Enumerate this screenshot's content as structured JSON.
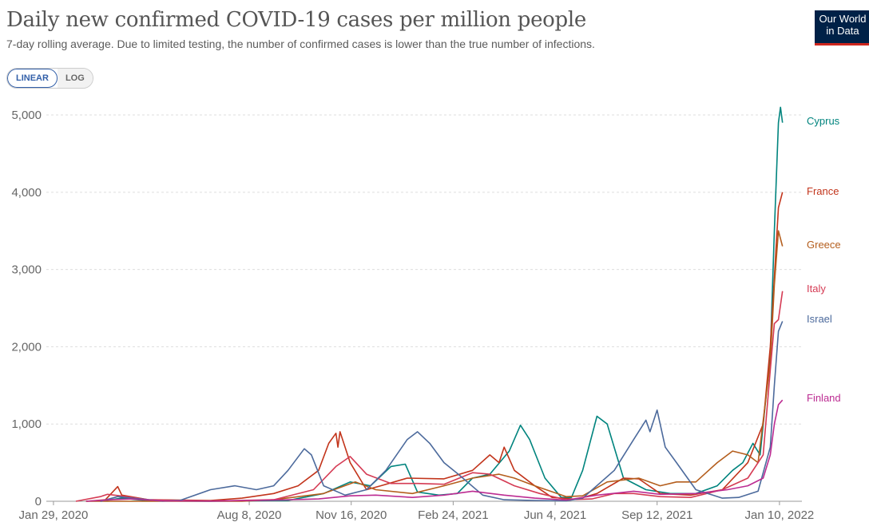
{
  "header": {
    "title": "Daily new confirmed COVID-19 cases per million people",
    "subtitle": "7-day rolling average. Due to limited testing, the number of confirmed cases is lower than the true number of infections."
  },
  "logo": {
    "line1": "Our World",
    "line2": "in Data"
  },
  "scale_toggle": {
    "linear_label": "LINEAR",
    "log_label": "LOG",
    "selected": "LINEAR"
  },
  "colors": {
    "accent": "#3360a9",
    "logo_bg": "#002147",
    "logo_stripe": "#ce261e"
  },
  "chart_data": {
    "type": "line",
    "title": "Daily new confirmed COVID-19 cases per million people",
    "subtitle": "7-day rolling average. Due to limited testing, the number of confirmed cases is lower than the true number of infections.",
    "xlabel": "",
    "ylabel": "",
    "x_axis": {
      "type": "date",
      "range": [
        "2020-01-22",
        "2022-02-01"
      ],
      "tick_labels": [
        "Jan 29, 2020",
        "Aug 8, 2020",
        "Nov 16, 2020",
        "Feb 24, 2021",
        "Jun 4, 2021",
        "Sep 12, 2021",
        "Jan 10, 2022"
      ],
      "tick_dates": [
        "2020-01-29",
        "2020-08-08",
        "2020-11-16",
        "2021-02-24",
        "2021-06-04",
        "2021-09-12",
        "2022-01-10"
      ]
    },
    "y_axis": {
      "range": [
        0,
        5300
      ],
      "ticks": [
        0,
        1000,
        2000,
        3000,
        4000,
        5000
      ],
      "tick_labels": [
        "0",
        "1,000",
        "2,000",
        "3,000",
        "4,000",
        "5,000"
      ]
    },
    "grid": true,
    "legend": "end-of-line labels",
    "series": [
      {
        "name": "Cyprus",
        "color": "#00847e",
        "points": [
          [
            "2020-03-15",
            0
          ],
          [
            "2020-04-05",
            40
          ],
          [
            "2020-05-01",
            5
          ],
          [
            "2020-07-01",
            0
          ],
          [
            "2020-09-15",
            10
          ],
          [
            "2020-10-20",
            100
          ],
          [
            "2020-11-15",
            250
          ],
          [
            "2020-12-05",
            200
          ],
          [
            "2020-12-25",
            450
          ],
          [
            "2021-01-08",
            480
          ],
          [
            "2021-01-20",
            120
          ],
          [
            "2021-02-10",
            80
          ],
          [
            "2021-02-28",
            100
          ],
          [
            "2021-03-15",
            300
          ],
          [
            "2021-04-01",
            350
          ],
          [
            "2021-04-20",
            650
          ],
          [
            "2021-05-01",
            985
          ],
          [
            "2021-05-10",
            800
          ],
          [
            "2021-05-25",
            300
          ],
          [
            "2021-06-10",
            50
          ],
          [
            "2021-06-20",
            50
          ],
          [
            "2021-07-01",
            400
          ],
          [
            "2021-07-15",
            1100
          ],
          [
            "2021-07-25",
            1000
          ],
          [
            "2021-08-10",
            300
          ],
          [
            "2021-09-01",
            150
          ],
          [
            "2021-09-25",
            100
          ],
          [
            "2021-10-20",
            100
          ],
          [
            "2021-11-10",
            200
          ],
          [
            "2021-11-25",
            400
          ],
          [
            "2021-12-05",
            500
          ],
          [
            "2021-12-15",
            750
          ],
          [
            "2021-12-22",
            600
          ],
          [
            "2022-01-01",
            1900
          ],
          [
            "2022-01-05",
            3500
          ],
          [
            "2022-01-09",
            4900
          ],
          [
            "2022-01-11",
            5100
          ],
          [
            "2022-01-13",
            4900
          ]
        ]
      },
      {
        "name": "France",
        "color": "#c2341b",
        "points": [
          [
            "2020-03-01",
            0
          ],
          [
            "2020-03-20",
            20
          ],
          [
            "2020-04-01",
            190
          ],
          [
            "2020-04-05",
            80
          ],
          [
            "2020-05-01",
            20
          ],
          [
            "2020-07-01",
            10
          ],
          [
            "2020-08-01",
            40
          ],
          [
            "2020-09-01",
            100
          ],
          [
            "2020-09-25",
            200
          ],
          [
            "2020-10-15",
            400
          ],
          [
            "2020-10-25",
            750
          ],
          [
            "2020-11-01",
            880
          ],
          [
            "2020-11-03",
            700
          ],
          [
            "2020-11-05",
            900
          ],
          [
            "2020-11-15",
            500
          ],
          [
            "2020-12-01",
            150
          ],
          [
            "2020-12-15",
            200
          ],
          [
            "2021-01-10",
            300
          ],
          [
            "2021-02-15",
            290
          ],
          [
            "2021-03-15",
            400
          ],
          [
            "2021-04-01",
            600
          ],
          [
            "2021-04-10",
            500
          ],
          [
            "2021-04-15",
            700
          ],
          [
            "2021-04-25",
            400
          ],
          [
            "2021-05-15",
            200
          ],
          [
            "2021-06-01",
            50
          ],
          [
            "2021-06-25",
            25
          ],
          [
            "2021-07-15",
            100
          ],
          [
            "2021-08-10",
            300
          ],
          [
            "2021-08-25",
            290
          ],
          [
            "2021-09-15",
            100
          ],
          [
            "2021-10-15",
            80
          ],
          [
            "2021-11-15",
            150
          ],
          [
            "2021-12-10",
            500
          ],
          [
            "2021-12-25",
            1000
          ],
          [
            "2022-01-01",
            2000
          ],
          [
            "2022-01-05",
            2900
          ],
          [
            "2022-01-09",
            3800
          ],
          [
            "2022-01-13",
            4000
          ]
        ]
      },
      {
        "name": "Greece",
        "color": "#b45e1d",
        "points": [
          [
            "2020-03-01",
            0
          ],
          [
            "2020-08-01",
            0
          ],
          [
            "2020-09-01",
            20
          ],
          [
            "2020-10-20",
            100
          ],
          [
            "2020-11-20",
            250
          ],
          [
            "2020-12-10",
            150
          ],
          [
            "2021-01-15",
            100
          ],
          [
            "2021-02-15",
            200
          ],
          [
            "2021-03-15",
            300
          ],
          [
            "2021-04-10",
            350
          ],
          [
            "2021-04-25",
            300
          ],
          [
            "2021-05-15",
            200
          ],
          [
            "2021-06-15",
            60
          ],
          [
            "2021-07-01",
            70
          ],
          [
            "2021-07-25",
            250
          ],
          [
            "2021-08-25",
            300
          ],
          [
            "2021-09-15",
            200
          ],
          [
            "2021-10-01",
            250
          ],
          [
            "2021-10-20",
            250
          ],
          [
            "2021-11-10",
            500
          ],
          [
            "2021-11-25",
            650
          ],
          [
            "2021-12-10",
            600
          ],
          [
            "2021-12-20",
            500
          ],
          [
            "2022-01-01",
            1800
          ],
          [
            "2022-01-05",
            2800
          ],
          [
            "2022-01-09",
            3500
          ],
          [
            "2022-01-13",
            3300
          ]
        ]
      },
      {
        "name": "Italy",
        "color": "#d53b54",
        "points": [
          [
            "2020-02-20",
            0
          ],
          [
            "2020-03-15",
            60
          ],
          [
            "2020-03-22",
            90
          ],
          [
            "2020-04-10",
            60
          ],
          [
            "2020-05-01",
            20
          ],
          [
            "2020-07-01",
            3
          ],
          [
            "2020-09-01",
            20
          ],
          [
            "2020-10-10",
            150
          ],
          [
            "2020-11-01",
            450
          ],
          [
            "2020-11-15",
            580
          ],
          [
            "2020-12-01",
            350
          ],
          [
            "2020-12-25",
            230
          ],
          [
            "2021-01-20",
            230
          ],
          [
            "2021-02-15",
            220
          ],
          [
            "2021-03-15",
            370
          ],
          [
            "2021-04-01",
            350
          ],
          [
            "2021-04-25",
            200
          ],
          [
            "2021-05-20",
            100
          ],
          [
            "2021-06-15",
            20
          ],
          [
            "2021-07-10",
            30
          ],
          [
            "2021-08-01",
            100
          ],
          [
            "2021-08-20",
            100
          ],
          [
            "2021-09-15",
            60
          ],
          [
            "2021-10-15",
            50
          ],
          [
            "2021-11-15",
            150
          ],
          [
            "2021-12-10",
            300
          ],
          [
            "2021-12-25",
            600
          ],
          [
            "2022-01-01",
            1700
          ],
          [
            "2022-01-05",
            2300
          ],
          [
            "2022-01-09",
            2350
          ],
          [
            "2022-01-13",
            2720
          ]
        ]
      },
      {
        "name": "Israel",
        "color": "#4c6a9c",
        "points": [
          [
            "2020-03-15",
            0
          ],
          [
            "2020-04-01",
            60
          ],
          [
            "2020-04-15",
            40
          ],
          [
            "2020-05-15",
            2
          ],
          [
            "2020-06-01",
            10
          ],
          [
            "2020-07-01",
            150
          ],
          [
            "2020-07-25",
            200
          ],
          [
            "2020-08-15",
            150
          ],
          [
            "2020-09-01",
            200
          ],
          [
            "2020-09-15",
            400
          ],
          [
            "2020-10-01",
            680
          ],
          [
            "2020-10-08",
            600
          ],
          [
            "2020-10-20",
            200
          ],
          [
            "2020-11-10",
            80
          ],
          [
            "2020-12-01",
            150
          ],
          [
            "2020-12-20",
            400
          ],
          [
            "2021-01-10",
            800
          ],
          [
            "2021-01-20",
            900
          ],
          [
            "2021-02-01",
            750
          ],
          [
            "2021-02-15",
            500
          ],
          [
            "2021-03-01",
            350
          ],
          [
            "2021-03-25",
            80
          ],
          [
            "2021-04-15",
            20
          ],
          [
            "2021-05-15",
            10
          ],
          [
            "2021-06-15",
            5
          ],
          [
            "2021-07-01",
            40
          ],
          [
            "2021-08-01",
            400
          ],
          [
            "2021-08-20",
            800
          ],
          [
            "2021-09-01",
            1050
          ],
          [
            "2021-09-05",
            900
          ],
          [
            "2021-09-12",
            1180
          ],
          [
            "2021-09-20",
            700
          ],
          [
            "2021-10-01",
            500
          ],
          [
            "2021-10-20",
            150
          ],
          [
            "2021-11-15",
            40
          ],
          [
            "2021-12-01",
            50
          ],
          [
            "2021-12-20",
            130
          ],
          [
            "2022-01-01",
            700
          ],
          [
            "2022-01-05",
            1500
          ],
          [
            "2022-01-09",
            2200
          ],
          [
            "2022-01-13",
            2330
          ]
        ]
      },
      {
        "name": "Finland",
        "color": "#bc2c92",
        "points": [
          [
            "2020-03-01",
            0
          ],
          [
            "2020-03-25",
            20
          ],
          [
            "2020-04-15",
            30
          ],
          [
            "2020-05-15",
            5
          ],
          [
            "2020-07-01",
            2
          ],
          [
            "2020-09-01",
            15
          ],
          [
            "2020-10-15",
            30
          ],
          [
            "2020-11-15",
            70
          ],
          [
            "2020-12-10",
            80
          ],
          [
            "2021-01-15",
            50
          ],
          [
            "2021-02-15",
            80
          ],
          [
            "2021-03-15",
            130
          ],
          [
            "2021-04-15",
            80
          ],
          [
            "2021-05-15",
            40
          ],
          [
            "2021-06-15",
            15
          ],
          [
            "2021-07-15",
            80
          ],
          [
            "2021-08-20",
            130
          ],
          [
            "2021-09-15",
            90
          ],
          [
            "2021-10-20",
            100
          ],
          [
            "2021-11-20",
            150
          ],
          [
            "2021-12-10",
            200
          ],
          [
            "2021-12-25",
            300
          ],
          [
            "2022-01-01",
            600
          ],
          [
            "2022-01-05",
            1000
          ],
          [
            "2022-01-09",
            1250
          ],
          [
            "2022-01-13",
            1310
          ]
        ]
      }
    ]
  }
}
